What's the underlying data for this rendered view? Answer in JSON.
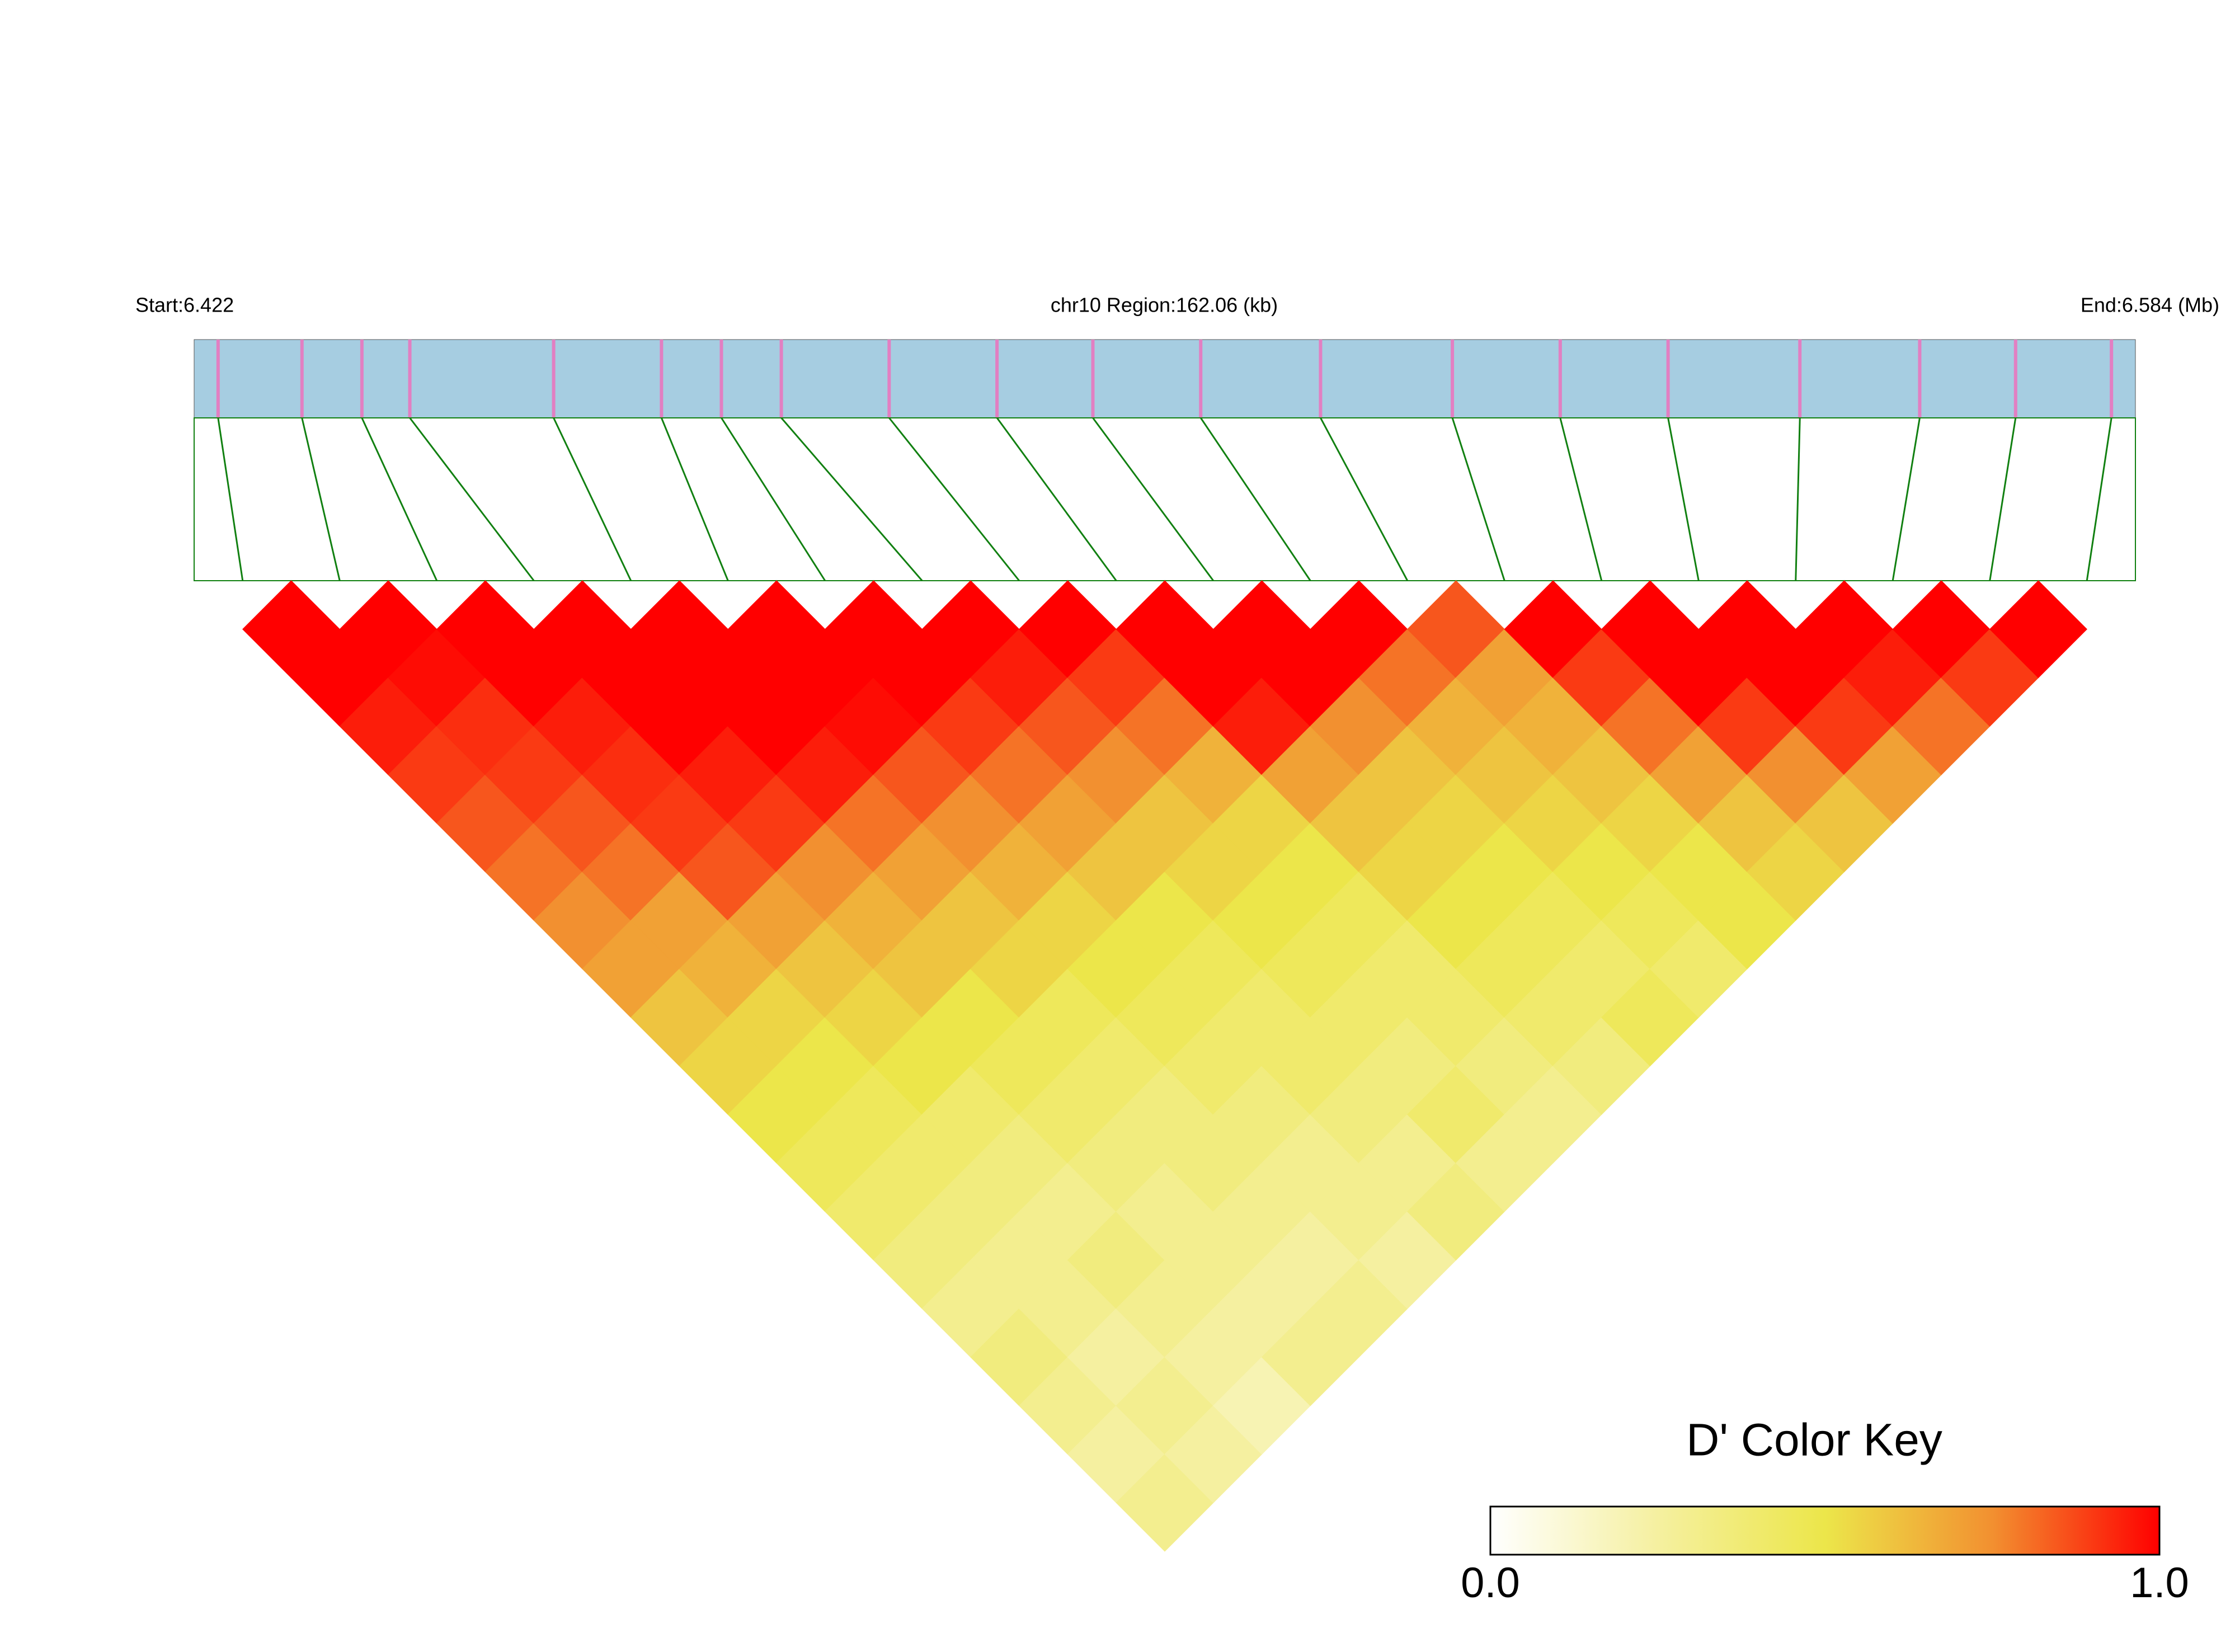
{
  "chart_data": {
    "type": "ld-heatmap",
    "start_label": "Start:6.422",
    "region_label": "chr10 Region:162.06 (kb)",
    "end_label": "End:6.584 (Mb)",
    "xlim": [
      6.422,
      6.584
    ],
    "positions": [
      6.424,
      6.431,
      6.436,
      6.44,
      6.452,
      6.461,
      6.466,
      6.471,
      6.48,
      6.489,
      6.497,
      6.506,
      6.516,
      6.527,
      6.536,
      6.545,
      6.556,
      6.566,
      6.574,
      6.582
    ],
    "matrix": [
      [
        1,
        1,
        0.95,
        0.9,
        0.85,
        0.8,
        0.75,
        0.7,
        0.6,
        0.55,
        0.5,
        0.45,
        0.4,
        0.35,
        0.3,
        0.35,
        0.3,
        0.25,
        0.3
      ],
      [
        1,
        0.98,
        0.92,
        0.9,
        0.85,
        0.8,
        0.7,
        0.65,
        0.55,
        0.5,
        0.45,
        0.4,
        0.35,
        0.3,
        0.3,
        0.25,
        0.3,
        0.25
      ],
      [
        1,
        1,
        0.95,
        0.92,
        0.9,
        0.85,
        0.7,
        0.6,
        0.55,
        0.5,
        0.4,
        0.35,
        0.3,
        0.35,
        0.3,
        0.25,
        0.2
      ],
      [
        1,
        1,
        1,
        0.95,
        0.9,
        0.75,
        0.65,
        0.6,
        0.5,
        0.45,
        0.4,
        0.35,
        0.3,
        0.3,
        0.25,
        0.3
      ],
      [
        1,
        1,
        1,
        0.95,
        0.8,
        0.7,
        0.6,
        0.55,
        0.45,
        0.4,
        0.35,
        0.35,
        0.3,
        0.25,
        0.3
      ],
      [
        1,
        1,
        0.98,
        0.85,
        0.75,
        0.65,
        0.55,
        0.5,
        0.45,
        0.4,
        0.35,
        0.3,
        0.3,
        0.25
      ],
      [
        1,
        1,
        0.9,
        0.8,
        0.7,
        0.6,
        0.5,
        0.45,
        0.4,
        0.4,
        0.35,
        0.3,
        0.35
      ],
      [
        1,
        0.95,
        0.85,
        0.75,
        0.6,
        0.55,
        0.5,
        0.45,
        0.4,
        0.35,
        0.4,
        0.3
      ],
      [
        1,
        0.9,
        0.8,
        0.65,
        0.55,
        0.5,
        0.45,
        0.4,
        0.4,
        0.35,
        0.3
      ],
      [
        1,
        1,
        0.95,
        0.7,
        0.6,
        0.55,
        0.5,
        0.45,
        0.4,
        0.35
      ],
      [
        1,
        1,
        0.75,
        0.6,
        0.55,
        0.5,
        0.45,
        0.4,
        0.45
      ],
      [
        1,
        0.8,
        0.65,
        0.6,
        0.55,
        0.5,
        0.45,
        0.4
      ],
      [
        0.85,
        0.7,
        0.65,
        0.6,
        0.55,
        0.5,
        0.5
      ],
      [
        1,
        0.9,
        0.8,
        0.7,
        0.6,
        0.55
      ],
      [
        1,
        1,
        0.9,
        0.75,
        0.6
      ],
      [
        1,
        1,
        0.9,
        0.7
      ],
      [
        1,
        0.95,
        0.8
      ],
      [
        1,
        0.9
      ],
      [
        1
      ]
    ],
    "key_title": "D' Color Key",
    "clim": [
      0,
      1
    ],
    "cticks": [
      {
        "value": 0,
        "label": "0.0"
      },
      {
        "value": 1,
        "label": "1.0"
      }
    ],
    "colorscale": [
      "#ffffff",
      "#f5f0a0",
      "#ece64a",
      "#f29030",
      "#ff0000"
    ],
    "bar_color": "#a6cde1",
    "snp_color": "#e27fc2",
    "link_color": "#118011"
  }
}
